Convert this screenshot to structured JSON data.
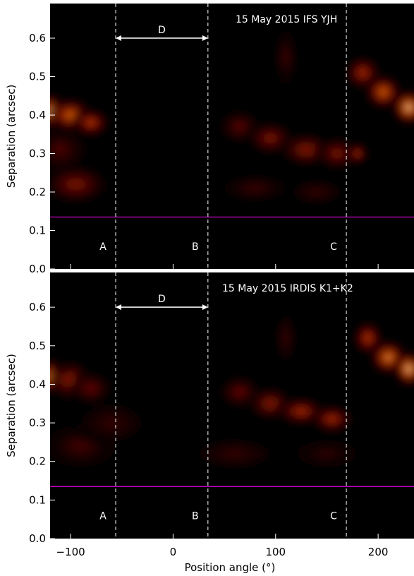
{
  "chart_data": [
    {
      "type": "heatmap",
      "title": "15 May 2015 IFS YJH",
      "xlabel": "",
      "ylabel": "Separation (arcsec)",
      "xlim": [
        -120,
        235
      ],
      "ylim": [
        0.0,
        0.69
      ],
      "x_ticks": [
        -100,
        0,
        100,
        200
      ],
      "y_ticks": [
        "0.0",
        "0.1",
        "0.2",
        "0.3",
        "0.4",
        "0.5",
        "0.6"
      ],
      "grid": false,
      "colormap": "black-red-yellow-white",
      "mask_separation": 0.135,
      "mask_line_color": "#e000e0",
      "markers": [
        {
          "label": "A",
          "position_angle": -56
        },
        {
          "label": "B",
          "position_angle": 34
        },
        {
          "label": "C",
          "position_angle": 169
        }
      ],
      "span": {
        "label": "D",
        "from": -56,
        "to": 34,
        "separation": 0.6
      },
      "features": [
        {
          "pa": -120,
          "sep": 0.41,
          "intensity": 1.0,
          "spread_pa": 10,
          "spread_sep": 0.03
        },
        {
          "pa": -100,
          "sep": 0.4,
          "intensity": 0.75,
          "spread_pa": 14,
          "spread_sep": 0.03
        },
        {
          "pa": -80,
          "sep": 0.38,
          "intensity": 0.6,
          "spread_pa": 12,
          "spread_sep": 0.025
        },
        {
          "pa": -95,
          "sep": 0.22,
          "intensity": 0.42,
          "spread_pa": 22,
          "spread_sep": 0.035
        },
        {
          "pa": -110,
          "sep": 0.31,
          "intensity": 0.28,
          "spread_pa": 18,
          "spread_sep": 0.04
        },
        {
          "pa": 65,
          "sep": 0.37,
          "intensity": 0.32,
          "spread_pa": 14,
          "spread_sep": 0.03
        },
        {
          "pa": 95,
          "sep": 0.34,
          "intensity": 0.42,
          "spread_pa": 16,
          "spread_sep": 0.03
        },
        {
          "pa": 130,
          "sep": 0.31,
          "intensity": 0.45,
          "spread_pa": 18,
          "spread_sep": 0.03
        },
        {
          "pa": 160,
          "sep": 0.3,
          "intensity": 0.42,
          "spread_pa": 14,
          "spread_sep": 0.03
        },
        {
          "pa": 180,
          "sep": 0.3,
          "intensity": 0.52,
          "spread_pa": 7,
          "spread_sep": 0.02
        },
        {
          "pa": 110,
          "sep": 0.55,
          "intensity": 0.22,
          "spread_pa": 8,
          "spread_sep": 0.05
        },
        {
          "pa": 80,
          "sep": 0.21,
          "intensity": 0.22,
          "spread_pa": 22,
          "spread_sep": 0.025
        },
        {
          "pa": 140,
          "sep": 0.2,
          "intensity": 0.2,
          "spread_pa": 20,
          "spread_sep": 0.025
        },
        {
          "pa": 185,
          "sep": 0.51,
          "intensity": 0.55,
          "spread_pa": 12,
          "spread_sep": 0.03
        },
        {
          "pa": 205,
          "sep": 0.46,
          "intensity": 0.75,
          "spread_pa": 12,
          "spread_sep": 0.03
        },
        {
          "pa": 230,
          "sep": 0.42,
          "intensity": 1.0,
          "spread_pa": 11,
          "spread_sep": 0.03
        }
      ]
    },
    {
      "type": "heatmap",
      "title": "15 May 2015 IRDIS K1+K2",
      "xlabel": "Position angle (°)",
      "ylabel": "Separation (arcsec)",
      "xlim": [
        -120,
        235
      ],
      "ylim": [
        0.0,
        0.69
      ],
      "x_ticks": [
        -100,
        0,
        100,
        200
      ],
      "y_ticks": [
        "0.0",
        "0.1",
        "0.2",
        "0.3",
        "0.4",
        "0.5",
        "0.6"
      ],
      "grid": false,
      "colormap": "black-red-yellow-white",
      "mask_separation": 0.135,
      "mask_line_color": "#e000e0",
      "markers": [
        {
          "label": "A",
          "position_angle": -56
        },
        {
          "label": "B",
          "position_angle": 34
        },
        {
          "label": "C",
          "position_angle": 169
        }
      ],
      "span": {
        "label": "D",
        "from": -56,
        "to": 34,
        "separation": 0.6
      },
      "features": [
        {
          "pa": -120,
          "sep": 0.42,
          "intensity": 0.9,
          "spread_pa": 10,
          "spread_sep": 0.03
        },
        {
          "pa": -100,
          "sep": 0.41,
          "intensity": 0.5,
          "spread_pa": 14,
          "spread_sep": 0.035
        },
        {
          "pa": -80,
          "sep": 0.39,
          "intensity": 0.35,
          "spread_pa": 14,
          "spread_sep": 0.03
        },
        {
          "pa": -90,
          "sep": 0.24,
          "intensity": 0.25,
          "spread_pa": 25,
          "spread_sep": 0.04
        },
        {
          "pa": -60,
          "sep": 0.3,
          "intensity": 0.2,
          "spread_pa": 25,
          "spread_sep": 0.04
        },
        {
          "pa": 65,
          "sep": 0.38,
          "intensity": 0.35,
          "spread_pa": 14,
          "spread_sep": 0.03
        },
        {
          "pa": 95,
          "sep": 0.35,
          "intensity": 0.45,
          "spread_pa": 15,
          "spread_sep": 0.03
        },
        {
          "pa": 125,
          "sep": 0.33,
          "intensity": 0.55,
          "spread_pa": 16,
          "spread_sep": 0.025
        },
        {
          "pa": 155,
          "sep": 0.31,
          "intensity": 0.55,
          "spread_pa": 14,
          "spread_sep": 0.025
        },
        {
          "pa": 110,
          "sep": 0.52,
          "intensity": 0.2,
          "spread_pa": 8,
          "spread_sep": 0.05
        },
        {
          "pa": 60,
          "sep": 0.22,
          "intensity": 0.2,
          "spread_pa": 30,
          "spread_sep": 0.03
        },
        {
          "pa": 150,
          "sep": 0.22,
          "intensity": 0.18,
          "spread_pa": 25,
          "spread_sep": 0.03
        },
        {
          "pa": 190,
          "sep": 0.52,
          "intensity": 0.6,
          "spread_pa": 10,
          "spread_sep": 0.03
        },
        {
          "pa": 210,
          "sep": 0.47,
          "intensity": 0.85,
          "spread_pa": 12,
          "spread_sep": 0.03
        },
        {
          "pa": 230,
          "sep": 0.44,
          "intensity": 1.0,
          "spread_pa": 10,
          "spread_sep": 0.03
        }
      ]
    }
  ]
}
